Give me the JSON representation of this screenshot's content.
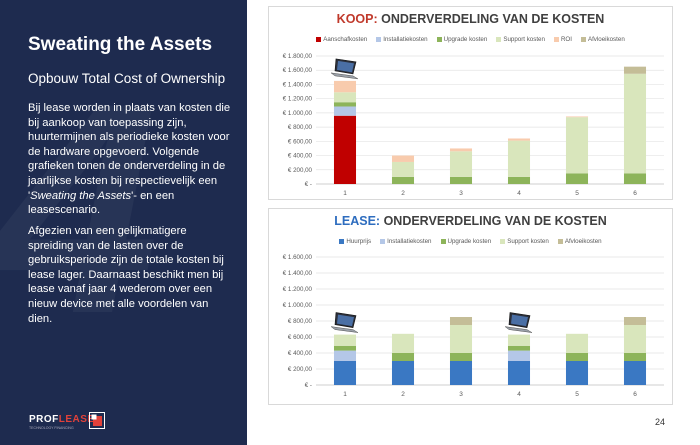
{
  "slide": {
    "title": "Sweating the Assets",
    "subtitle": "Opbouw Total Cost of Ownership",
    "background_number": "4",
    "paragraph1_pre": "Bij lease worden in plaats van kosten die bij aankoop van toepassing zijn, huurtermijnen als periodieke kosten voor de hardware opgevoerd. Volgende grafieken tonen de onderverdeling in de jaarlijkse kosten bij respectievelijk een '",
    "paragraph1_em": "Sweating the Assets",
    "paragraph1_post": "'- en een leasescenario.",
    "paragraph2": "Afgezien van een gelijkmatigere spreiding van de lasten over de gebruiksperiode zijn de totale kosten bij lease lager. Daarnaast beschikt men bij lease vanaf jaar 4 wederom over een nieuw device met alle voordelen van dien.",
    "logo_main": "PROF",
    "logo_accent": "LEASE",
    "logo_tagline": "TECHNOLOGY FINANCING",
    "page_number": "24"
  },
  "colors": {
    "navy": "#1e2b4f",
    "aanschaf": "#c00000",
    "installatie": "#b4c7e7",
    "upgrade": "#8db45a",
    "support": "#d9e6bc",
    "roi": "#f8cbad",
    "afvloei": "#c4bd97",
    "huur": "#3a78c3"
  },
  "chart_data": [
    {
      "type": "bar",
      "stacked": true,
      "title_accent": "KOOP:",
      "title_rest": " ONDERVERDELING VAN DE KOSTEN",
      "categories": [
        "1",
        "2",
        "3",
        "4",
        "5",
        "6"
      ],
      "ylim": [
        0,
        1800
      ],
      "yticks": [
        0,
        200,
        400,
        600,
        800,
        1000,
        1200,
        1400,
        1600,
        1800
      ],
      "ytick_labels": [
        "€ -",
        "€ 200,00",
        "€ 400,00",
        "€ 600,00",
        "€ 800,00",
        "€ 1.000,00",
        "€ 1.200,00",
        "€ 1.400,00",
        "€ 1.600,00",
        "€ 1.800,00"
      ],
      "grid": true,
      "legend_position": "top",
      "series": [
        {
          "name": "Aanschafkosten",
          "color": "#c00000",
          "values": [
            960,
            0,
            0,
            0,
            0,
            0
          ]
        },
        {
          "name": "Installatiekosten",
          "color": "#b4c7e7",
          "values": [
            130,
            0,
            0,
            0,
            0,
            0
          ]
        },
        {
          "name": "Upgrade kosten",
          "color": "#8db45a",
          "values": [
            60,
            100,
            100,
            100,
            150,
            150
          ]
        },
        {
          "name": "Support kosten",
          "color": "#d9e6bc",
          "values": [
            140,
            210,
            360,
            510,
            790,
            1400
          ]
        },
        {
          "name": "ROI",
          "color": "#f8cbad",
          "values": [
            160,
            90,
            40,
            30,
            10,
            0
          ]
        },
        {
          "name": "Afvloeikosten",
          "color": "#c4bd97",
          "values": [
            0,
            0,
            0,
            0,
            0,
            100
          ]
        }
      ],
      "device_icon_categories": [
        "1"
      ]
    },
    {
      "type": "bar",
      "stacked": true,
      "title_accent": "LEASE:",
      "title_rest": " ONDERVERDELING VAN DE KOSTEN",
      "categories": [
        "1",
        "2",
        "3",
        "4",
        "5",
        "6"
      ],
      "ylim": [
        0,
        1600
      ],
      "yticks": [
        0,
        200,
        400,
        600,
        800,
        1000,
        1200,
        1400,
        1600
      ],
      "ytick_labels": [
        "€ -",
        "€ 200,00",
        "€ 400,00",
        "€ 600,00",
        "€ 800,00",
        "€ 1.000,00",
        "€ 1.200,00",
        "€ 1.400,00",
        "€ 1.600,00"
      ],
      "grid": true,
      "legend_position": "top",
      "series": [
        {
          "name": "Huurprijs",
          "color": "#3a78c3",
          "values": [
            300,
            300,
            300,
            300,
            300,
            300
          ]
        },
        {
          "name": "Installatiekosten",
          "color": "#b4c7e7",
          "values": [
            130,
            0,
            0,
            130,
            0,
            0
          ]
        },
        {
          "name": "Upgrade kosten",
          "color": "#8db45a",
          "values": [
            60,
            100,
            100,
            60,
            100,
            100
          ]
        },
        {
          "name": "Support kosten",
          "color": "#d9e6bc",
          "values": [
            140,
            240,
            350,
            140,
            240,
            350
          ]
        },
        {
          "name": "Afvloeikosten",
          "color": "#c4bd97",
          "values": [
            0,
            0,
            100,
            0,
            0,
            100
          ]
        }
      ],
      "device_icon_categories": [
        "1",
        "4"
      ]
    }
  ]
}
